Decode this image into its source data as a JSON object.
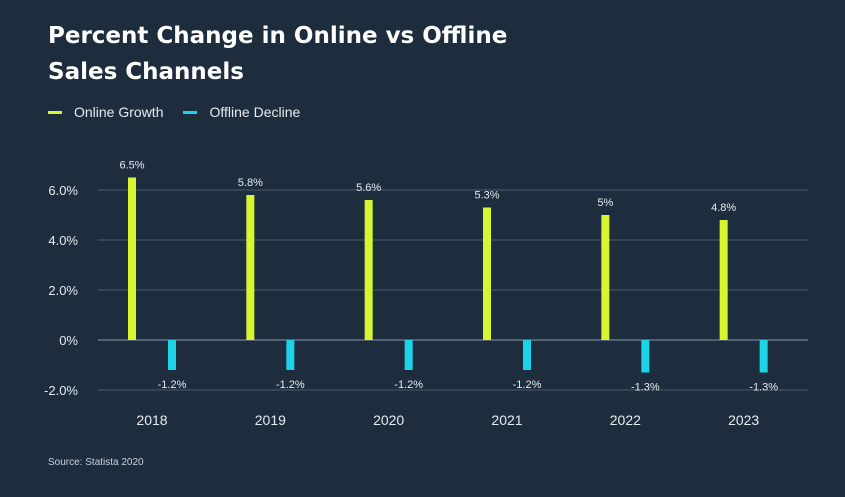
{
  "colors": {
    "background": "#1e2d3d",
    "online": "#d7f531",
    "offline": "#1bd4e6",
    "gridline": "#4c5b6b",
    "text": "#e6ebf0"
  },
  "chart_data": {
    "type": "bar",
    "title": "Percent Change in Online vs Offline Sales Channels",
    "categories": [
      "2018",
      "2019",
      "2020",
      "2021",
      "2022",
      "2023"
    ],
    "series": [
      {
        "name": "Online Growth",
        "values": [
          6.5,
          5.8,
          5.6,
          5.3,
          5,
          4.8
        ],
        "labels": [
          "6.5%",
          "5.8%",
          "5.6%",
          "5.3%",
          "5%",
          "4.8%"
        ]
      },
      {
        "name": "Offline Decline",
        "values": [
          -1.2,
          -1.2,
          -1.2,
          -1.2,
          -1.3,
          -1.3
        ],
        "labels": [
          "-1.2%",
          "-1.2%",
          "-1.2%",
          "-1.2%",
          "-1.3%",
          "-1.3%"
        ]
      }
    ],
    "ylim": [
      -2,
      6
    ],
    "yticks": [
      6,
      4,
      2,
      0,
      -2
    ],
    "ytick_labels": [
      "6.0%",
      "4.0%",
      "2.0%",
      "0%",
      "-2.0%"
    ],
    "grid": true,
    "legend_position": "top-left"
  },
  "source": "Source: Statista 2020"
}
